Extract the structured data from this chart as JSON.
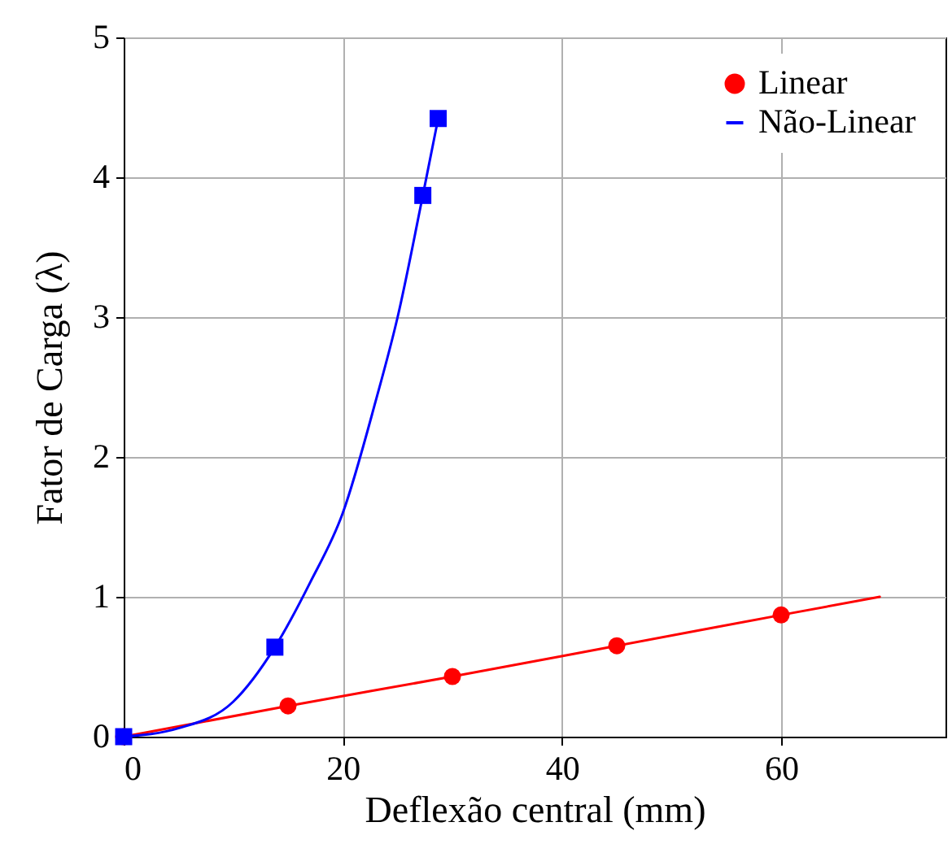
{
  "chart_data": {
    "type": "line",
    "xlabel": "Deflexão central (mm)",
    "ylabel": "Fator de Carga (λ)",
    "xlim": [
      0,
      75
    ],
    "ylim": [
      0,
      5
    ],
    "xticks": [
      0,
      20,
      40,
      60
    ],
    "yticks": [
      0,
      1,
      2,
      3,
      4,
      5
    ],
    "grid": true,
    "legend": "top right",
    "line_style": "solid",
    "series": [
      {
        "name": "Linear",
        "color": "#ff0000",
        "marker": "circle",
        "x": [
          0,
          15,
          30,
          45,
          60
        ],
        "values": [
          0,
          0.22,
          0.43,
          0.65,
          0.87
        ]
      },
      {
        "color": "#ff0000",
        "marker": "none",
        "x": [
          60,
          69
        ],
        "values": [
          0.87,
          1.0
        ]
      },
      {
        "name": "Não-Linear",
        "color": "#0000ff",
        "marker": "none",
        "x": [
          0,
          5,
          10,
          13.8,
          17,
          20,
          23,
          25,
          27.3,
          28.7
        ],
        "values": [
          0,
          0.06,
          0.25,
          0.64,
          1.1,
          1.6,
          2.4,
          3.0,
          3.87,
          4.42
        ]
      },
      {
        "type": "scatter",
        "color": "#0000ff",
        "marker": "square",
        "x": [
          0,
          13.8,
          27.3,
          28.7
        ],
        "values": [
          0,
          0.64,
          3.87,
          4.42
        ]
      }
    ]
  }
}
